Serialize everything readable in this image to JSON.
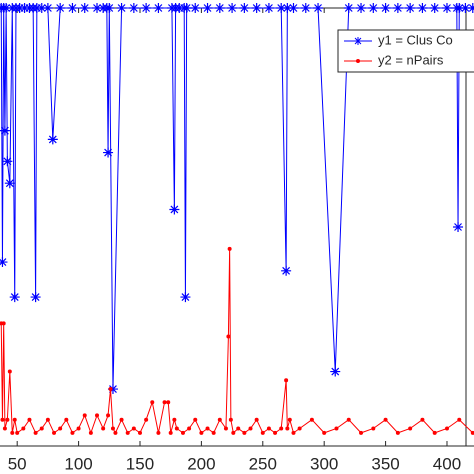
{
  "chart_data": {
    "type": "line",
    "xlim": [
      36,
      422
    ],
    "ylim": [
      0,
      1
    ],
    "xticks": [
      50,
      100,
      150,
      200,
      250,
      300,
      350,
      400
    ],
    "legend": "top-right",
    "series": [
      {
        "name": "y1 = Clus Co",
        "color": "#0000ff",
        "marker": "asterisk",
        "x": [
          37,
          38,
          39,
          40,
          41,
          42,
          44,
          46,
          48,
          49,
          52,
          56,
          60,
          63,
          65,
          66,
          70,
          75,
          79,
          85,
          95,
          105,
          115,
          120,
          123,
          124,
          125,
          128,
          135,
          145,
          155,
          165,
          176,
          178,
          179,
          182,
          186,
          187,
          188,
          195,
          205,
          215,
          225,
          235,
          245,
          255,
          265,
          269,
          270,
          275,
          285,
          295,
          309,
          320,
          330,
          340,
          350,
          360,
          370,
          380,
          390,
          400,
          408,
          409,
          410,
          415,
          421
        ],
        "values": [
          1,
          0.42,
          1,
          0.72,
          1,
          0.65,
          0.6,
          1,
          0.34,
          1,
          1,
          1,
          1,
          1,
          0.34,
          1,
          1,
          1,
          0.7,
          1,
          1,
          1,
          1,
          1,
          1,
          0.67,
          1,
          0.13,
          1,
          1,
          1,
          1,
          1,
          0.54,
          1,
          1,
          1,
          0.34,
          1,
          1,
          1,
          1,
          1,
          1,
          1,
          1,
          1,
          0.4,
          1,
          1,
          1,
          1,
          0.17,
          1,
          1,
          1,
          1,
          1,
          1,
          1,
          1,
          1,
          1,
          0.5,
          1,
          1,
          1
        ]
      },
      {
        "name": "y2 = nPairs",
        "color": "#ff0000",
        "marker": "dot",
        "x": [
          37,
          38,
          39,
          40,
          42,
          44,
          46,
          48,
          50,
          55,
          60,
          65,
          70,
          75,
          80,
          85,
          90,
          95,
          100,
          105,
          110,
          115,
          120,
          124,
          126,
          128,
          130,
          135,
          140,
          145,
          150,
          155,
          160,
          165,
          170,
          173,
          175,
          178,
          180,
          185,
          190,
          195,
          200,
          205,
          210,
          215,
          220,
          222,
          223,
          224,
          226,
          230,
          235,
          240,
          245,
          250,
          255,
          260,
          265,
          269,
          270,
          272,
          275,
          280,
          290,
          300,
          310,
          320,
          330,
          340,
          350,
          360,
          370,
          380,
          390,
          400,
          410,
          421
        ],
        "values": [
          0.28,
          0.06,
          0.28,
          0.04,
          0.06,
          0.17,
          0.03,
          0.06,
          0.03,
          0.04,
          0.06,
          0.03,
          0.04,
          0.06,
          0.03,
          0.04,
          0.06,
          0.03,
          0.04,
          0.07,
          0.03,
          0.07,
          0.04,
          0.07,
          0.13,
          0.04,
          0.03,
          0.06,
          0.03,
          0.04,
          0.03,
          0.06,
          0.1,
          0.03,
          0.1,
          0.1,
          0.03,
          0.06,
          0.04,
          0.03,
          0.04,
          0.06,
          0.03,
          0.04,
          0.03,
          0.06,
          0.04,
          0.25,
          0.45,
          0.06,
          0.03,
          0.04,
          0.03,
          0.04,
          0.06,
          0.03,
          0.04,
          0.03,
          0.04,
          0.15,
          0.04,
          0.06,
          0.03,
          0.04,
          0.06,
          0.03,
          0.04,
          0.06,
          0.03,
          0.04,
          0.06,
          0.03,
          0.04,
          0.06,
          0.03,
          0.04,
          0.06,
          0.03
        ]
      }
    ]
  }
}
